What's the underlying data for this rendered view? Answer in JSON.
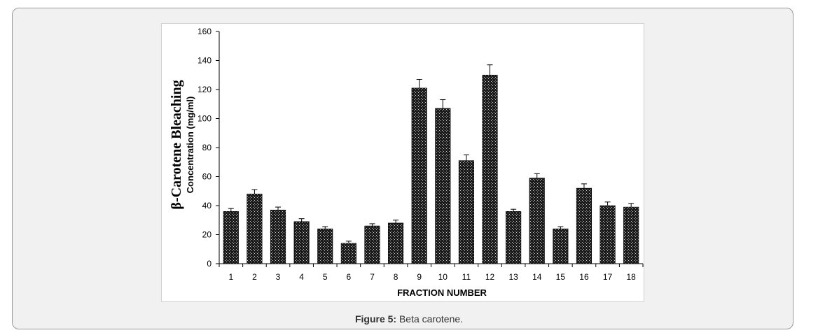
{
  "caption": {
    "label": "Figure 5:",
    "text": " Beta carotene."
  },
  "colors": {
    "bar_fill": "#1a1a1a",
    "bar_pattern_dot": "#cfcfcf",
    "axis": "#000000",
    "card_bg": "#f1f1f1"
  },
  "chart_data": {
    "type": "bar",
    "title": "",
    "xlabel": "FRACTION NUMBER",
    "ylabel_line1": "β-Carotene Bleaching",
    "ylabel_line2": "Concentration (mg/ml)",
    "ylim": [
      0,
      160
    ],
    "yticks": [
      0,
      20,
      40,
      60,
      80,
      100,
      120,
      140,
      160
    ],
    "ytick_labels": [
      "0",
      "20",
      "40",
      "60",
      "80",
      "100",
      "120",
      "140",
      "160"
    ],
    "grid": false,
    "legend": "none",
    "categories": [
      "1",
      "2",
      "3",
      "4",
      "5",
      "6",
      "7",
      "8",
      "9",
      "10",
      "11",
      "12",
      "13",
      "14",
      "15",
      "16",
      "17",
      "18"
    ],
    "values": [
      36,
      48,
      37,
      29,
      24,
      14,
      26,
      28,
      121,
      107,
      71,
      130,
      36,
      59,
      24,
      52,
      40,
      39
    ],
    "errors": [
      2,
      3,
      2,
      2,
      1.5,
      1.5,
      1.5,
      2,
      6,
      6,
      4,
      7,
      1.5,
      3,
      1.5,
      3,
      2.5,
      2.5
    ]
  }
}
